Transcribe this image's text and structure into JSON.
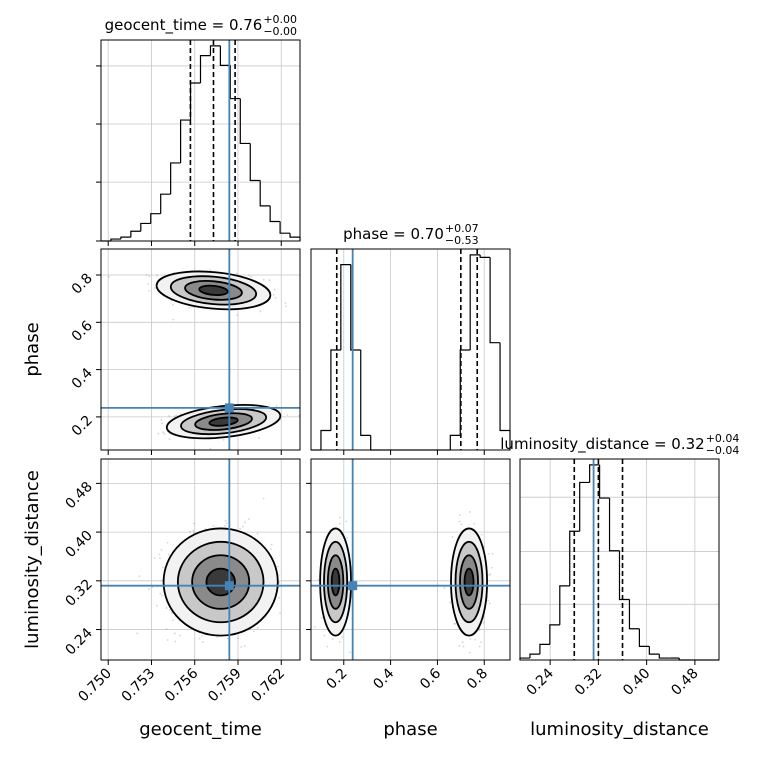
{
  "chart_data": {
    "type": "corner",
    "parameters": [
      "geocent_time",
      "phase",
      "luminosity_distance"
    ],
    "truths": [
      0.7584,
      0.238,
      0.312
    ],
    "truth_color": "#4682b4",
    "grid": true,
    "titles": [
      {
        "main": "geocent_time = 0.76",
        "plus": "+0.00",
        "minus": "−0.00"
      },
      {
        "main": "phase = 0.70",
        "plus": "+0.07",
        "minus": "−0.53"
      },
      {
        "main": "luminosity_distance = 0.32",
        "plus": "+0.04",
        "minus": "−0.04"
      }
    ],
    "axes": {
      "geocent_time": {
        "label": "geocent_time",
        "range": [
          0.7495,
          0.7633
        ],
        "ticks": [
          0.75,
          0.753,
          0.756,
          0.759,
          0.762
        ],
        "tick_labels": [
          "0.750",
          "0.753",
          "0.756",
          "0.759",
          "0.762"
        ]
      },
      "phase": {
        "label": "phase",
        "range": [
          0.06,
          0.91
        ],
        "ticks": [
          0.2,
          0.4,
          0.6,
          0.8
        ],
        "tick_labels": [
          "0.2",
          "0.4",
          "0.6",
          "0.8"
        ]
      },
      "luminosity_distance": {
        "label": "luminosity_distance",
        "range": [
          0.19,
          0.52
        ],
        "ticks": [
          0.24,
          0.32,
          0.4,
          0.48
        ],
        "tick_labels": [
          "0.24",
          "0.32",
          "0.40",
          "0.48"
        ]
      }
    },
    "histograms": {
      "geocent_time": {
        "edges_start": 0.7495,
        "bin_width": 0.00069,
        "counts": [
          0,
          1,
          2,
          5,
          9,
          14,
          24,
          40,
          62,
          81,
          95,
          100,
          90,
          73,
          50,
          31,
          18,
          10,
          4,
          2
        ],
        "quantiles": [
          0.7557,
          0.7573,
          0.7588
        ]
      },
      "phase": {
        "edges_start": 0.06,
        "bin_width": 0.0425,
        "counts": [
          0,
          8,
          41,
          76,
          41,
          6,
          0,
          0,
          0,
          0,
          0,
          0,
          0,
          0,
          6,
          41,
          80,
          79,
          44,
          8
        ],
        "quantiles": [
          0.17,
          0.7,
          0.77
        ]
      },
      "luminosity_distance": {
        "edges_start": 0.19,
        "bin_width": 0.0165,
        "counts": [
          1,
          3,
          8,
          18,
          38,
          66,
          91,
          100,
          83,
          56,
          31,
          16,
          7,
          3,
          1,
          1,
          0,
          0,
          0,
          0
        ],
        "quantiles": [
          0.28,
          0.32,
          0.36
        ]
      }
    },
    "clusters": {
      "phase_vs_geocent_time": [
        {
          "center": [
            0.7573,
            0.735
          ],
          "sigma": [
            0.0018,
            0.035
          ],
          "rho": -0.3,
          "fraction": 0.64
        },
        {
          "center": [
            0.758,
            0.18
          ],
          "sigma": [
            0.0018,
            0.03
          ],
          "rho": 0.35,
          "fraction": 0.36
        }
      ],
      "luminosity_distance_vs_geocent_time": [
        {
          "center": [
            0.7578,
            0.318
          ],
          "sigma": [
            0.0018,
            0.04
          ],
          "rho": 0.0,
          "fraction": 1.0
        }
      ],
      "luminosity_distance_vs_phase": [
        {
          "center": [
            0.165,
            0.318
          ],
          "sigma": [
            0.03,
            0.04
          ],
          "rho": 0.0,
          "fraction": 0.36
        },
        {
          "center": [
            0.735,
            0.318
          ],
          "sigma": [
            0.035,
            0.04
          ],
          "rho": 0.0,
          "fraction": 0.64
        }
      ]
    }
  }
}
